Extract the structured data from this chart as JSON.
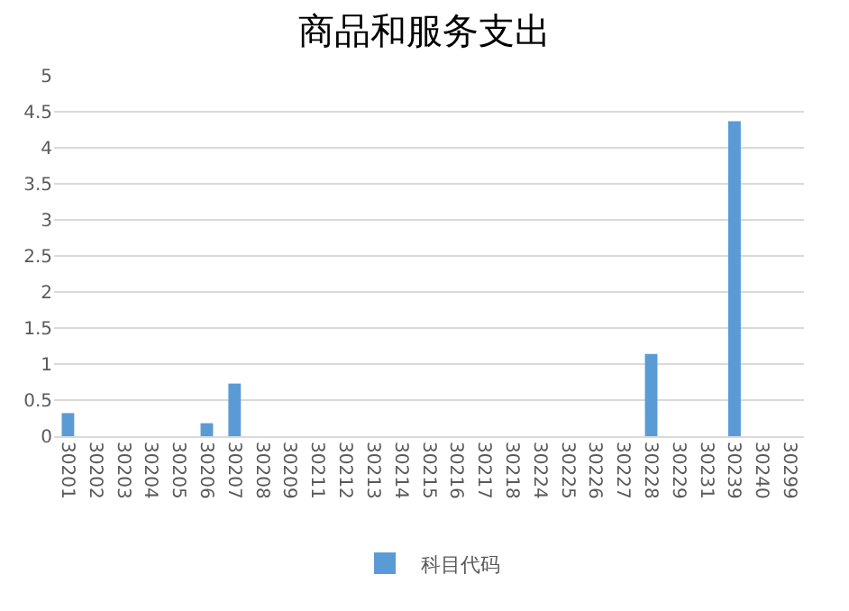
{
  "chart_data": {
    "type": "bar",
    "title": "商品和服务支出",
    "categories": [
      "30201",
      "30202",
      "30203",
      "30204",
      "30205",
      "30206",
      "30207",
      "30208",
      "30209",
      "30211",
      "30212",
      "30213",
      "30214",
      "30215",
      "30216",
      "30217",
      "30218",
      "30224",
      "30225",
      "30226",
      "30227",
      "30228",
      "30229",
      "30231",
      "30239",
      "30240",
      "30299"
    ],
    "series": [
      {
        "name": "科目代码",
        "color": "#5b9bd5",
        "values": [
          0.32,
          0,
          0,
          0,
          0,
          0.18,
          0.73,
          0,
          0,
          0,
          0,
          0,
          0,
          0,
          0,
          0,
          0,
          0,
          0,
          0,
          0,
          1.14,
          0,
          0,
          4.37,
          0,
          0
        ]
      }
    ],
    "ylim": [
      0,
      5
    ],
    "yticks": [
      0,
      0.5,
      1,
      1.5,
      2,
      2.5,
      3,
      3.5,
      4,
      4.5,
      5
    ],
    "grid": "y",
    "legend": "bottom"
  }
}
